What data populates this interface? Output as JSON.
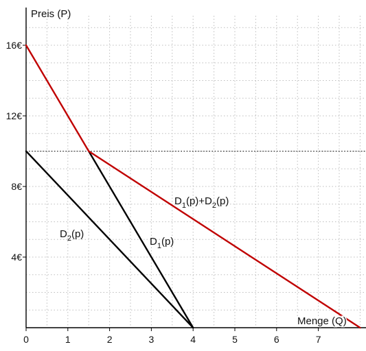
{
  "chart_data": {
    "type": "line",
    "xlabel": "Menge (Q)",
    "ylabel": "Preis (P)",
    "xlim": [
      0,
      8
    ],
    "ylim": [
      0,
      18
    ],
    "x_ticks": [
      0,
      1,
      2,
      3,
      4,
      5,
      6,
      7
    ],
    "x_tick_labels": [
      "0",
      "1",
      "2",
      "3",
      "4",
      "5",
      "6",
      "7"
    ],
    "y_ticks": [
      4,
      8,
      12,
      16
    ],
    "y_tick_labels": [
      "4€",
      "8€",
      "12€",
      "16€"
    ],
    "grid": true,
    "grid_step_x": 0.5,
    "grid_step_y": 1,
    "reference_lines": [
      {
        "orientation": "horizontal",
        "y": 10,
        "style": "dotted"
      }
    ],
    "series": [
      {
        "label_parts": [
          {
            "text": "D",
            "sub": "1"
          },
          {
            "text": "(p)"
          }
        ],
        "color": "#000000",
        "points": [
          [
            1.5,
            10
          ],
          [
            4,
            0
          ]
        ]
      },
      {
        "label_parts": [
          {
            "text": "D",
            "sub": "2"
          },
          {
            "text": "(p)"
          }
        ],
        "color": "#000000",
        "points": [
          [
            0,
            10
          ],
          [
            4,
            0
          ]
        ]
      },
      {
        "label_parts": [
          {
            "text": "D",
            "sub": "1"
          },
          {
            "text": "(p)+D"
          },
          {
            "text": "",
            "sub": "2"
          },
          {
            "text": "(p)"
          }
        ],
        "color": "#c00000",
        "points": [
          [
            0,
            16
          ],
          [
            1.5,
            10
          ],
          [
            8,
            0
          ]
        ]
      }
    ]
  }
}
